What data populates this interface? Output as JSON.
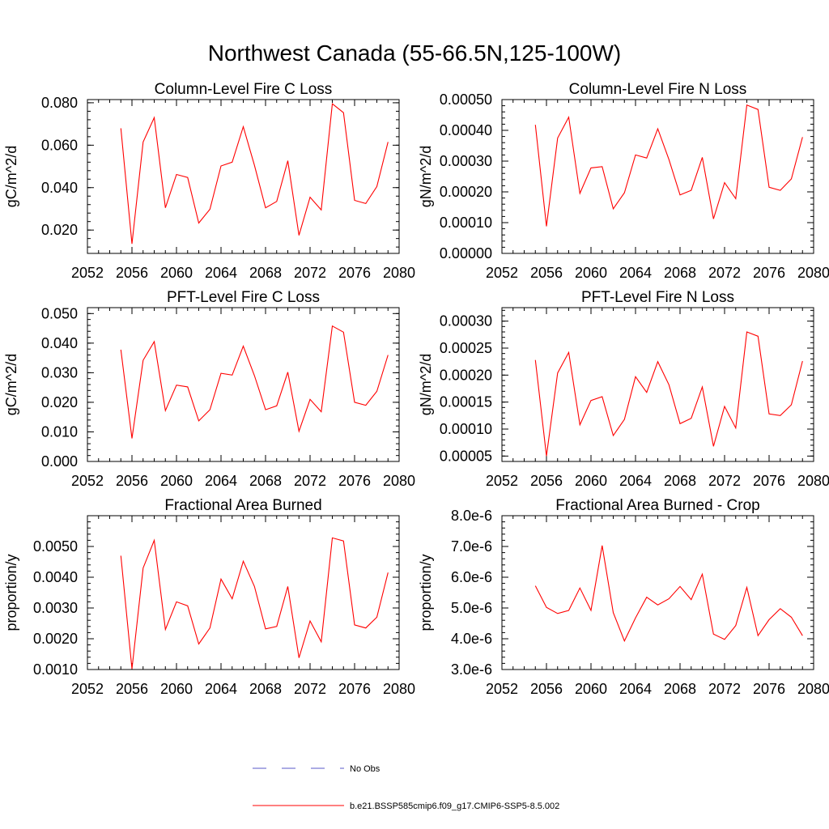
{
  "figure": {
    "title": "Northwest Canada (55-66.5N,125-100W)",
    "line_color": "#ff0000",
    "obs_color": "#5a5ac8"
  },
  "legend": {
    "placement": "bottom-center",
    "entries": [
      {
        "label": "No Obs",
        "style": "dashed",
        "color": "#5a5ac8"
      },
      {
        "label": "b.e21.BSSP585cmip6.f09_g17.CMIP6-SSP5-8.5.002",
        "style": "solid",
        "color": "#ff0000"
      }
    ]
  },
  "chart_data": [
    {
      "type": "line",
      "title": "Column-Level Fire C Loss",
      "xlabel": "",
      "ylabel": "gC/m^2/d",
      "xlim": [
        2052,
        2080
      ],
      "ylim": [
        0.009,
        0.0815
      ],
      "xticks": [
        2052,
        2056,
        2060,
        2064,
        2068,
        2072,
        2076,
        2080
      ],
      "yticks": [
        0.02,
        0.04,
        0.06,
        0.08
      ],
      "ytick_labels": [
        "0.020",
        "0.040",
        "0.060",
        "0.080"
      ],
      "x": [
        2055,
        2056,
        2057,
        2058,
        2059,
        2060,
        2061,
        2062,
        2063,
        2064,
        2065,
        2066,
        2067,
        2068,
        2069,
        2070,
        2071,
        2072,
        2073,
        2074,
        2075,
        2076,
        2077,
        2078,
        2079
      ],
      "series": [
        {
          "name": "b.e21.BSSP585cmip6.f09_g17.CMIP6-SSP5-8.5.002",
          "values": [
            0.068,
            0.0135,
            0.0615,
            0.073,
            0.0305,
            0.0462,
            0.0448,
            0.0233,
            0.0298,
            0.0502,
            0.052,
            0.0687,
            0.0505,
            0.0305,
            0.0335,
            0.0527,
            0.0175,
            0.0355,
            0.0295,
            0.0795,
            0.0753,
            0.034,
            0.0325,
            0.0405,
            0.0615
          ]
        }
      ]
    },
    {
      "type": "line",
      "title": "Column-Level Fire N Loss",
      "xlabel": "",
      "ylabel": "gN/m^2/d",
      "xlim": [
        2052,
        2080
      ],
      "ylim": [
        0.0,
        0.0005
      ],
      "xticks": [
        2052,
        2056,
        2060,
        2064,
        2068,
        2072,
        2076,
        2080
      ],
      "yticks": [
        0.0,
        0.0001,
        0.0002,
        0.0003,
        0.0004,
        0.0005
      ],
      "ytick_labels": [
        "0.00000",
        "0.00010",
        "0.00020",
        "0.00030",
        "0.00040",
        "0.00050"
      ],
      "x": [
        2055,
        2056,
        2057,
        2058,
        2059,
        2060,
        2061,
        2062,
        2063,
        2064,
        2065,
        2066,
        2067,
        2068,
        2069,
        2070,
        2071,
        2072,
        2073,
        2074,
        2075,
        2076,
        2077,
        2078,
        2079
      ],
      "series": [
        {
          "name": "b.e21.BSSP585cmip6.f09_g17.CMIP6-SSP5-8.5.002",
          "values": [
            0.000418,
            8.8e-05,
            0.000375,
            0.000443,
            0.000195,
            0.000278,
            0.000282,
            0.000145,
            0.000197,
            0.00032,
            0.00031,
            0.000405,
            0.000305,
            0.00019,
            0.000205,
            0.000312,
            0.000112,
            0.00023,
            0.000178,
            0.000482,
            0.000468,
            0.000215,
            0.000205,
            0.000242,
            0.000378
          ]
        }
      ]
    },
    {
      "type": "line",
      "title": "PFT-Level Fire C Loss",
      "xlabel": "",
      "ylabel": "gC/m^2/d",
      "xlim": [
        2052,
        2080
      ],
      "ylim": [
        0.0,
        0.052
      ],
      "xticks": [
        2052,
        2056,
        2060,
        2064,
        2068,
        2072,
        2076,
        2080
      ],
      "yticks": [
        0.0,
        0.01,
        0.02,
        0.03,
        0.04,
        0.05
      ],
      "ytick_labels": [
        "0.000",
        "0.010",
        "0.020",
        "0.030",
        "0.040",
        "0.050"
      ],
      "x": [
        2055,
        2056,
        2057,
        2058,
        2059,
        2060,
        2061,
        2062,
        2063,
        2064,
        2065,
        2066,
        2067,
        2068,
        2069,
        2070,
        2071,
        2072,
        2073,
        2074,
        2075,
        2076,
        2077,
        2078,
        2079
      ],
      "series": [
        {
          "name": "b.e21.BSSP585cmip6.f09_g17.CMIP6-SSP5-8.5.002",
          "values": [
            0.0378,
            0.0078,
            0.0342,
            0.0405,
            0.0172,
            0.0258,
            0.0252,
            0.0137,
            0.0175,
            0.0298,
            0.0292,
            0.039,
            0.029,
            0.0175,
            0.0188,
            0.0302,
            0.0102,
            0.021,
            0.0168,
            0.0458,
            0.0437,
            0.02,
            0.019,
            0.0237,
            0.036
          ]
        }
      ]
    },
    {
      "type": "line",
      "title": "PFT-Level Fire N Loss",
      "xlabel": "",
      "ylabel": "gN/m^2/d",
      "xlim": [
        2052,
        2080
      ],
      "ylim": [
        4e-05,
        0.000325
      ],
      "xticks": [
        2052,
        2056,
        2060,
        2064,
        2068,
        2072,
        2076,
        2080
      ],
      "yticks": [
        5e-05,
        0.0001,
        0.00015,
        0.0002,
        0.00025,
        0.0003
      ],
      "ytick_labels": [
        "0.00005",
        "0.00010",
        "0.00015",
        "0.00020",
        "0.00025",
        "0.00030"
      ],
      "x": [
        2055,
        2056,
        2057,
        2058,
        2059,
        2060,
        2061,
        2062,
        2063,
        2064,
        2065,
        2066,
        2067,
        2068,
        2069,
        2070,
        2071,
        2072,
        2073,
        2074,
        2075,
        2076,
        2077,
        2078,
        2079
      ],
      "series": [
        {
          "name": "b.e21.BSSP585cmip6.f09_g17.CMIP6-SSP5-8.5.002",
          "values": [
            0.000228,
            5e-05,
            0.000204,
            0.000242,
            0.000108,
            0.000153,
            0.00016,
            8.8e-05,
            0.000118,
            0.000197,
            0.000168,
            0.000225,
            0.000182,
            0.00011,
            0.00012,
            0.000178,
            6.8e-05,
            0.000142,
            0.000102,
            0.00028,
            0.000272,
            0.000128,
            0.000125,
            0.000145,
            0.000226
          ]
        }
      ]
    },
    {
      "type": "line",
      "title": "Fractional Area Burned",
      "xlabel": "",
      "ylabel": "proportion/y",
      "xlim": [
        2052,
        2080
      ],
      "ylim": [
        0.001,
        0.006
      ],
      "xticks": [
        2052,
        2056,
        2060,
        2064,
        2068,
        2072,
        2076,
        2080
      ],
      "yticks": [
        0.001,
        0.002,
        0.003,
        0.004,
        0.005
      ],
      "ytick_labels": [
        "0.0010",
        "0.0020",
        "0.0030",
        "0.0040",
        "0.0050"
      ],
      "x": [
        2055,
        2056,
        2057,
        2058,
        2059,
        2060,
        2061,
        2062,
        2063,
        2064,
        2065,
        2066,
        2067,
        2068,
        2069,
        2070,
        2071,
        2072,
        2073,
        2074,
        2075,
        2076,
        2077,
        2078,
        2079
      ],
      "series": [
        {
          "name": "b.e21.BSSP585cmip6.f09_g17.CMIP6-SSP5-8.5.002",
          "values": [
            0.0047,
            0.00102,
            0.0043,
            0.0052,
            0.0023,
            0.0032,
            0.00307,
            0.00183,
            0.00235,
            0.00394,
            0.0033,
            0.00452,
            0.0037,
            0.00232,
            0.0024,
            0.0037,
            0.00138,
            0.00258,
            0.0019,
            0.00528,
            0.00518,
            0.00245,
            0.00235,
            0.0027,
            0.00415
          ]
        }
      ]
    },
    {
      "type": "line",
      "title": "Fractional Area Burned - Crop",
      "xlabel": "",
      "ylabel": "proportion/y",
      "xlim": [
        2052,
        2080
      ],
      "ylim": [
        3e-06,
        8e-06
      ],
      "xticks": [
        2052,
        2056,
        2060,
        2064,
        2068,
        2072,
        2076,
        2080
      ],
      "yticks": [
        3e-06,
        4e-06,
        5e-06,
        6e-06,
        7e-06,
        8e-06
      ],
      "ytick_labels": [
        "3.0e-6",
        "4.0e-6",
        "5.0e-6",
        "6.0e-6",
        "7.0e-6",
        "8.0e-6"
      ],
      "x": [
        2055,
        2056,
        2057,
        2058,
        2059,
        2060,
        2061,
        2062,
        2063,
        2064,
        2065,
        2066,
        2067,
        2068,
        2069,
        2070,
        2071,
        2072,
        2073,
        2074,
        2075,
        2076,
        2077,
        2078,
        2079
      ],
      "series": [
        {
          "name": "b.e21.BSSP585cmip6.f09_g17.CMIP6-SSP5-8.5.002",
          "values": [
            5.72e-06,
            5.02e-06,
            4.82e-06,
            4.92e-06,
            5.65e-06,
            4.92e-06,
            7.03e-06,
            4.85e-06,
            3.93e-06,
            4.68e-06,
            5.35e-06,
            5.1e-06,
            5.3e-06,
            5.7e-06,
            5.27e-06,
            6.1e-06,
            4.15e-06,
            3.98e-06,
            4.43e-06,
            5.67e-06,
            4.1e-06,
            4.62e-06,
            4.98e-06,
            4.7e-06,
            4.1e-06
          ]
        }
      ]
    }
  ]
}
